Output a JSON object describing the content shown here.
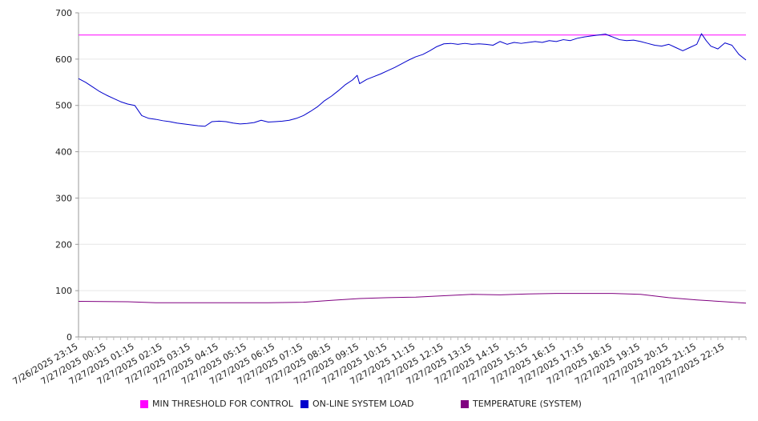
{
  "chart_data": {
    "type": "line",
    "title": "",
    "xlabel": "",
    "ylabel": "",
    "ylim": [
      0,
      700
    ],
    "yticks": [
      0,
      100,
      200,
      300,
      400,
      500,
      600,
      700
    ],
    "grid": true,
    "legend_position": "bottom",
    "x_range": [
      "7/26/2025 23:15",
      "7/27/2025 23:00"
    ],
    "x_tick_labels": [
      "7/26/2025 23:15",
      "7/27/2025 00:15",
      "7/27/2025 01:15",
      "7/27/2025 02:15",
      "7/27/2025 03:15",
      "7/27/2025 04:15",
      "7/27/2025 05:15",
      "7/27/2025 06:15",
      "7/27/2025 07:15",
      "7/27/2025 08:15",
      "7/27/2025 09:15",
      "7/27/2025 10:15",
      "7/27/2025 11:15",
      "7/27/2025 12:15",
      "7/27/2025 13:15",
      "7/27/2025 14:15",
      "7/27/2025 15:15",
      "7/27/2025 16:15",
      "7/27/2025 17:15",
      "7/27/2025 18:15",
      "7/27/2025 19:15",
      "7/27/2025 20:15",
      "7/27/2025 21:15",
      "7/27/2025 22:15"
    ],
    "series": [
      {
        "name": "MIN THRESHOLD FOR CONTROL",
        "color": "#ff00ff",
        "points": [
          [
            "7/26/2025 23:15",
            652
          ],
          [
            "7/27/2025 23:00",
            652
          ]
        ]
      },
      {
        "name": "ON-LINE SYSTEM LOAD",
        "color": "#0000cc",
        "points": [
          [
            "7/26/2025 23:15",
            558
          ],
          [
            "7/26/2025 23:30",
            550
          ],
          [
            "7/26/2025 23:45",
            540
          ],
          [
            "7/27/2025 00:00",
            530
          ],
          [
            "7/27/2025 00:15",
            522
          ],
          [
            "7/27/2025 00:30",
            515
          ],
          [
            "7/27/2025 00:45",
            508
          ],
          [
            "7/27/2025 01:00",
            503
          ],
          [
            "7/27/2025 01:15",
            500
          ],
          [
            "7/27/2025 01:30",
            478
          ],
          [
            "7/27/2025 01:45",
            472
          ],
          [
            "7/27/2025 02:00",
            470
          ],
          [
            "7/27/2025 02:15",
            467
          ],
          [
            "7/27/2025 02:30",
            465
          ],
          [
            "7/27/2025 02:45",
            462
          ],
          [
            "7/27/2025 03:00",
            460
          ],
          [
            "7/27/2025 03:15",
            458
          ],
          [
            "7/27/2025 03:30",
            456
          ],
          [
            "7/27/2025 03:45",
            455
          ],
          [
            "7/27/2025 04:00",
            465
          ],
          [
            "7/27/2025 04:15",
            466
          ],
          [
            "7/27/2025 04:30",
            465
          ],
          [
            "7/27/2025 04:45",
            462
          ],
          [
            "7/27/2025 05:00",
            460
          ],
          [
            "7/27/2025 05:15",
            461
          ],
          [
            "7/27/2025 05:30",
            463
          ],
          [
            "7/27/2025 05:45",
            468
          ],
          [
            "7/27/2025 06:00",
            464
          ],
          [
            "7/27/2025 06:15",
            465
          ],
          [
            "7/27/2025 06:30",
            466
          ],
          [
            "7/27/2025 06:45",
            468
          ],
          [
            "7/27/2025 07:00",
            472
          ],
          [
            "7/27/2025 07:15",
            478
          ],
          [
            "7/27/2025 07:30",
            487
          ],
          [
            "7/27/2025 07:45",
            497
          ],
          [
            "7/27/2025 08:00",
            510
          ],
          [
            "7/27/2025 08:15",
            520
          ],
          [
            "7/27/2025 08:30",
            532
          ],
          [
            "7/27/2025 08:45",
            545
          ],
          [
            "7/27/2025 09:00",
            555
          ],
          [
            "7/27/2025 09:10",
            565
          ],
          [
            "7/27/2025 09:15",
            547
          ],
          [
            "7/27/2025 09:30",
            556
          ],
          [
            "7/27/2025 09:45",
            562
          ],
          [
            "7/27/2025 10:00",
            568
          ],
          [
            "7/27/2025 10:15",
            575
          ],
          [
            "7/27/2025 10:30",
            582
          ],
          [
            "7/27/2025 10:45",
            590
          ],
          [
            "7/27/2025 11:00",
            598
          ],
          [
            "7/27/2025 11:15",
            605
          ],
          [
            "7/27/2025 11:30",
            610
          ],
          [
            "7/27/2025 11:45",
            618
          ],
          [
            "7/27/2025 12:00",
            627
          ],
          [
            "7/27/2025 12:15",
            633
          ],
          [
            "7/27/2025 12:30",
            634
          ],
          [
            "7/27/2025 12:45",
            632
          ],
          [
            "7/27/2025 13:00",
            634
          ],
          [
            "7/27/2025 13:15",
            632
          ],
          [
            "7/27/2025 13:30",
            633
          ],
          [
            "7/27/2025 13:45",
            632
          ],
          [
            "7/27/2025 14:00",
            630
          ],
          [
            "7/27/2025 14:15",
            638
          ],
          [
            "7/27/2025 14:30",
            632
          ],
          [
            "7/27/2025 14:45",
            636
          ],
          [
            "7/27/2025 15:00",
            634
          ],
          [
            "7/27/2025 15:15",
            636
          ],
          [
            "7/27/2025 15:30",
            638
          ],
          [
            "7/27/2025 15:45",
            636
          ],
          [
            "7/27/2025 16:00",
            640
          ],
          [
            "7/27/2025 16:15",
            638
          ],
          [
            "7/27/2025 16:30",
            642
          ],
          [
            "7/27/2025 16:45",
            640
          ],
          [
            "7/27/2025 17:00",
            645
          ],
          [
            "7/27/2025 17:15",
            648
          ],
          [
            "7/27/2025 17:30",
            650
          ],
          [
            "7/27/2025 17:45",
            652
          ],
          [
            "7/27/2025 18:00",
            654
          ],
          [
            "7/27/2025 18:15",
            648
          ],
          [
            "7/27/2025 18:30",
            642
          ],
          [
            "7/27/2025 18:45",
            640
          ],
          [
            "7/27/2025 19:00",
            641
          ],
          [
            "7/27/2025 19:15",
            638
          ],
          [
            "7/27/2025 19:30",
            634
          ],
          [
            "7/27/2025 19:45",
            630
          ],
          [
            "7/27/2025 20:00",
            628
          ],
          [
            "7/27/2025 20:15",
            632
          ],
          [
            "7/27/2025 20:30",
            625
          ],
          [
            "7/27/2025 20:45",
            618
          ],
          [
            "7/27/2025 21:00",
            625
          ],
          [
            "7/27/2025 21:15",
            632
          ],
          [
            "7/27/2025 21:25",
            655
          ],
          [
            "7/27/2025 21:35",
            640
          ],
          [
            "7/27/2025 21:45",
            628
          ],
          [
            "7/27/2025 22:00",
            622
          ],
          [
            "7/27/2025 22:15",
            635
          ],
          [
            "7/27/2025 22:30",
            630
          ],
          [
            "7/27/2025 22:45",
            610
          ],
          [
            "7/27/2025 23:00",
            598
          ]
        ]
      },
      {
        "name": "TEMPERATURE (SYSTEM)",
        "color": "#800080",
        "points": [
          [
            "7/26/2025 23:15",
            77
          ],
          [
            "7/27/2025 01:00",
            76
          ],
          [
            "7/27/2025 02:00",
            74
          ],
          [
            "7/27/2025 04:00",
            74
          ],
          [
            "7/27/2025 06:00",
            74
          ],
          [
            "7/27/2025 07:15",
            75
          ],
          [
            "7/27/2025 08:15",
            79
          ],
          [
            "7/27/2025 09:15",
            83
          ],
          [
            "7/27/2025 10:15",
            85
          ],
          [
            "7/27/2025 11:15",
            86
          ],
          [
            "7/27/2025 12:15",
            89
          ],
          [
            "7/27/2025 13:15",
            92
          ],
          [
            "7/27/2025 14:15",
            91
          ],
          [
            "7/27/2025 15:15",
            93
          ],
          [
            "7/27/2025 16:15",
            94
          ],
          [
            "7/27/2025 17:15",
            94
          ],
          [
            "7/27/2025 18:15",
            94
          ],
          [
            "7/27/2025 19:15",
            92
          ],
          [
            "7/27/2025 20:15",
            85
          ],
          [
            "7/27/2025 21:15",
            80
          ],
          [
            "7/27/2025 22:15",
            76
          ],
          [
            "7/27/2025 23:00",
            73
          ]
        ]
      }
    ]
  }
}
